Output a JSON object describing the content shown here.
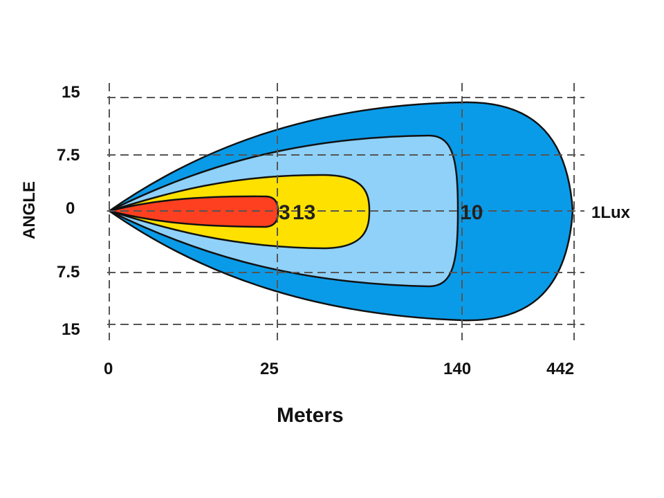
{
  "chart_data": {
    "type": "isolux-beam-diagram",
    "xlabel": "Meters",
    "ylabel": "ANGLE",
    "x_ticks": [
      "0",
      "25",
      "140",
      "442"
    ],
    "y_ticks": [
      "15",
      "7.5",
      "0",
      "7.5",
      "15"
    ],
    "grid": true,
    "zones": [
      {
        "name": "1Lux",
        "label": "1Lux",
        "color": "#0a9be8",
        "reach_tick": "442"
      },
      {
        "name": "10",
        "label": "10",
        "color": "#8fd1f8",
        "reach_tick": "140"
      },
      {
        "name": "3",
        "label": "3",
        "color": "#ffe100"
      },
      {
        "name": "13",
        "label": "13",
        "color": "#ff4020",
        "reach_tick": "25"
      }
    ]
  }
}
